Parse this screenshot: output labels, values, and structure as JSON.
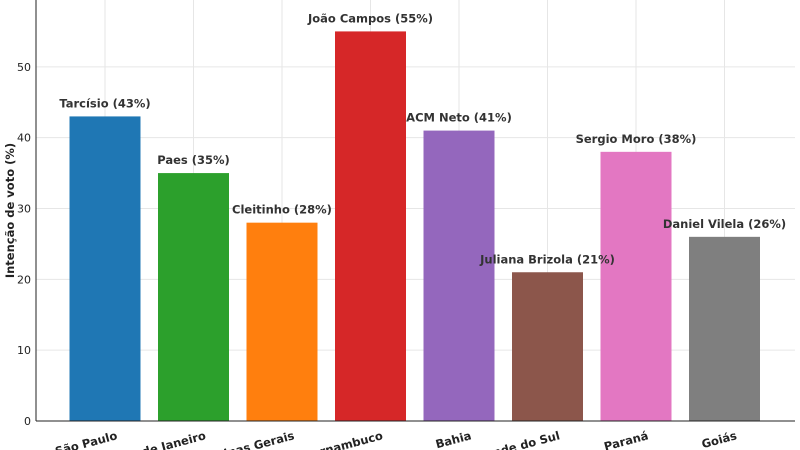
{
  "chart_data": {
    "type": "bar",
    "categories": [
      "São Paulo",
      "Rio de Janeiro",
      "Minas Gerais",
      "Pernambuco",
      "Bahia",
      "Rio Grande do Sul",
      "Paraná",
      "Goiás"
    ],
    "values": [
      43,
      35,
      28,
      55,
      41,
      21,
      38,
      26
    ],
    "data_labels": [
      "Tarcísio (43%)",
      "Paes (35%)",
      "Cleitinho (28%)",
      "João Campos (55%)",
      "ACM Neto (41%)",
      "Juliana Brizola (21%)",
      "Sergio Moro (38%)",
      "Daniel Vilela (26%)"
    ],
    "colors": [
      "#1f77b4",
      "#2ca02c",
      "#ff7f0e",
      "#d62728",
      "#9467bd",
      "#8c564b",
      "#e377c2",
      "#7f7f7f"
    ],
    "title": "",
    "xlabel": "",
    "ylabel": "Intenção de voto (%)",
    "ylim": [
      0,
      60
    ],
    "yticks": [
      0,
      10,
      20,
      30,
      40,
      50,
      60
    ],
    "grid": true
  }
}
